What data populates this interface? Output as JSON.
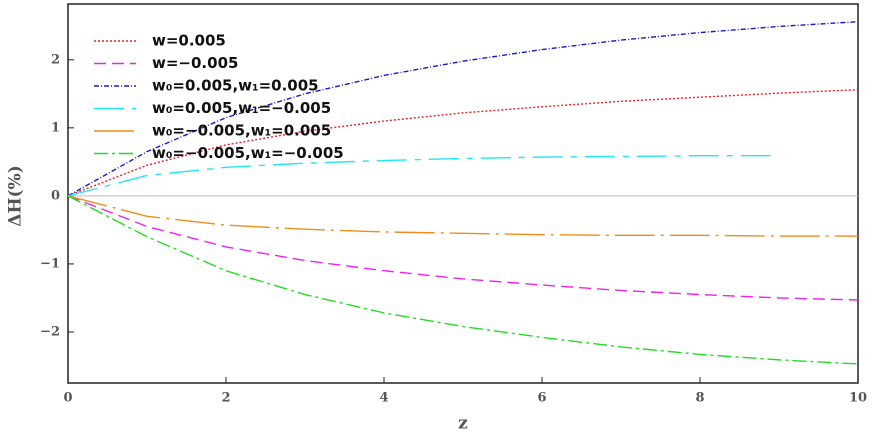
{
  "chart_data": {
    "type": "line",
    "x": [
      0,
      1,
      2,
      3,
      4,
      5,
      6,
      7,
      8,
      9,
      10
    ],
    "xlabel": "z",
    "ylabel": "ΔH(%)",
    "xlim": [
      0,
      10
    ],
    "ylim": [
      -2.75,
      2.82
    ],
    "xticks": [
      0,
      2,
      4,
      6,
      8,
      10
    ],
    "yticks": [
      {
        "value": -2,
        "label": "−2"
      },
      {
        "value": -1,
        "label": "−1"
      },
      0,
      1,
      2
    ],
    "zero_line": true,
    "legend": "upper-left",
    "series": [
      {
        "name": "w=0.005",
        "color": "#e8202a",
        "dash": "2,2",
        "values": [
          0,
          0.45,
          0.75,
          0.95,
          1.1,
          1.22,
          1.31,
          1.39,
          1.45,
          1.51,
          1.56
        ]
      },
      {
        "name": "w=−0.005",
        "color": "#ee22ee",
        "dash": "12,6",
        "values": [
          0,
          -0.45,
          -0.75,
          -0.95,
          -1.1,
          -1.22,
          -1.31,
          -1.39,
          -1.45,
          -1.5,
          -1.53
        ]
      },
      {
        "name": "w₀=0.005,w₁=0.005",
        "color": "#1a1acc",
        "dash": "5,2,1,2",
        "values": [
          0,
          0.65,
          1.15,
          1.5,
          1.77,
          1.98,
          2.15,
          2.29,
          2.4,
          2.49,
          2.56
        ]
      },
      {
        "name": "w₀=0.005,w₁=−0.005",
        "color": "#22e6f0",
        "dash": "30,8,6,8",
        "values": [
          0,
          0.3,
          0.42,
          0.48,
          0.52,
          0.55,
          0.57,
          0.58,
          0.59,
          0.59,
          null
        ]
      },
      {
        "name": "w₀=−0.005,w₁=0.005",
        "color": "#f08c1a",
        "dash": "40,6,3,6",
        "values": [
          0,
          -0.3,
          -0.43,
          -0.49,
          -0.53,
          -0.55,
          -0.57,
          -0.58,
          -0.58,
          -0.59,
          -0.59
        ]
      },
      {
        "name": "w₀=−0.005,w₁=−0.005",
        "color": "#22dd22",
        "dash": "14,4,3,4",
        "values": [
          0,
          -0.6,
          -1.1,
          -1.45,
          -1.72,
          -1.92,
          -2.08,
          -2.22,
          -2.33,
          -2.41,
          -2.47
        ]
      }
    ]
  }
}
